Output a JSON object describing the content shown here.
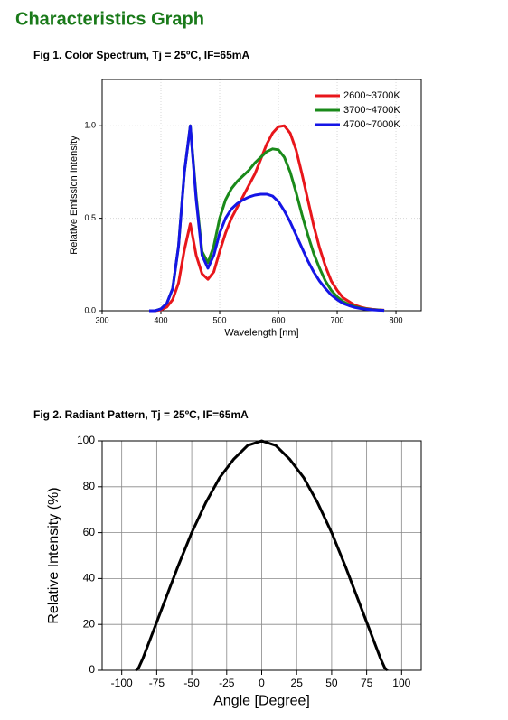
{
  "heading": "Characteristics Graph",
  "chart_data": [
    {
      "type": "line",
      "title": "Fig 1. Color Spectrum, Tj = 25ºC,  IF=65mA",
      "x_label": "Wavelength [nm]",
      "y_label": "Relative Emission Intensity",
      "x": [
        380,
        390,
        400,
        410,
        420,
        430,
        440,
        450,
        460,
        470,
        480,
        490,
        500,
        510,
        520,
        530,
        540,
        550,
        560,
        570,
        580,
        590,
        600,
        610,
        620,
        630,
        640,
        650,
        660,
        670,
        680,
        690,
        700,
        710,
        720,
        730,
        740,
        750,
        760,
        770,
        780
      ],
      "series": [
        {
          "name": "2600~3700K",
          "color": "#e8161b",
          "values": [
            0,
            0,
            0.005,
            0.02,
            0.06,
            0.15,
            0.33,
            0.47,
            0.3,
            0.2,
            0.17,
            0.21,
            0.32,
            0.42,
            0.5,
            0.56,
            0.62,
            0.68,
            0.74,
            0.82,
            0.9,
            0.96,
            0.995,
            1.0,
            0.96,
            0.87,
            0.74,
            0.6,
            0.46,
            0.34,
            0.24,
            0.16,
            0.11,
            0.07,
            0.05,
            0.03,
            0.02,
            0.012,
            0.008,
            0.005,
            0.003
          ]
        },
        {
          "name": "3700~4700K",
          "color": "#1a8a1a",
          "values": [
            0,
            0,
            0.01,
            0.04,
            0.12,
            0.35,
            0.75,
            1.0,
            0.62,
            0.32,
            0.26,
            0.35,
            0.5,
            0.6,
            0.66,
            0.7,
            0.73,
            0.76,
            0.8,
            0.83,
            0.86,
            0.875,
            0.87,
            0.83,
            0.75,
            0.64,
            0.52,
            0.41,
            0.31,
            0.23,
            0.16,
            0.11,
            0.075,
            0.05,
            0.033,
            0.022,
            0.015,
            0.01,
            0.006,
            0.004,
            0.002
          ]
        },
        {
          "name": "4700~7000K",
          "color": "#1515e6",
          "values": [
            0,
            0,
            0.01,
            0.04,
            0.12,
            0.35,
            0.75,
            1.0,
            0.6,
            0.3,
            0.23,
            0.3,
            0.42,
            0.5,
            0.55,
            0.58,
            0.6,
            0.615,
            0.625,
            0.63,
            0.63,
            0.62,
            0.59,
            0.54,
            0.48,
            0.41,
            0.34,
            0.27,
            0.21,
            0.16,
            0.12,
            0.085,
            0.06,
            0.04,
            0.028,
            0.018,
            0.012,
            0.008,
            0.005,
            0.003,
            0.002
          ]
        }
      ],
      "xlim": [
        300,
        843
      ],
      "ylim": [
        0,
        1.25
      ],
      "xticks": [
        300,
        400,
        500,
        600,
        700,
        800
      ],
      "yticks": [
        {
          "value": 0,
          "label": "0.0"
        },
        0.5,
        {
          "value": 1,
          "label": "1.0"
        }
      ],
      "grid": true,
      "legend": "top-right"
    },
    {
      "type": "line",
      "title": "Fig 2. Radiant Pattern, Tj = 25ºC,  IF=65mA",
      "x_label": "Angle [Degree]",
      "y_label": "Relative Intensity (%)",
      "x": [
        -90,
        -88,
        -85,
        -80,
        -75,
        -70,
        -60,
        -50,
        -40,
        -30,
        -20,
        -10,
        0,
        10,
        20,
        30,
        40,
        50,
        60,
        70,
        75,
        80,
        85,
        88,
        90
      ],
      "values": [
        0,
        1,
        5,
        13,
        21,
        29,
        45,
        60,
        73,
        84,
        92,
        98,
        100,
        98,
        92,
        84,
        73,
        60,
        45,
        29,
        21,
        13,
        5,
        1,
        0
      ],
      "color": "#000000",
      "xlim": [
        -114,
        114
      ],
      "ylim": [
        0,
        100
      ],
      "xticks": [
        -100,
        -75,
        -50,
        -25,
        0,
        25,
        50,
        75,
        100
      ],
      "yticks": [
        0,
        20,
        40,
        60,
        80,
        100
      ],
      "grid": true
    }
  ]
}
